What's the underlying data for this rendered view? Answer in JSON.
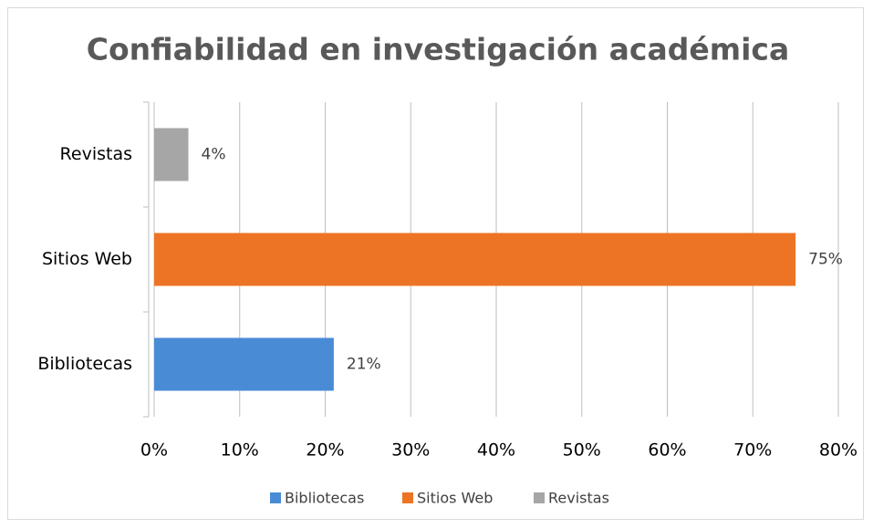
{
  "chart_data": {
    "type": "bar",
    "orientation": "horizontal",
    "title": "Confiabilidad en investigación académica",
    "categories": [
      "Bibliotecas",
      "Sitios Web",
      "Revistas"
    ],
    "values": [
      21,
      75,
      4
    ],
    "value_labels": [
      "21%",
      "75%",
      "4%"
    ],
    "colors": [
      "#4a8bd6",
      "#ed7424",
      "#a6a6a6"
    ],
    "xlim": [
      0,
      80
    ],
    "xticks": [
      {
        "value": 0,
        "label": "0%"
      },
      {
        "value": 10,
        "label": "10%"
      },
      {
        "value": 20,
        "label": "20%"
      },
      {
        "value": 30,
        "label": "30%"
      },
      {
        "value": 40,
        "label": "40%"
      },
      {
        "value": 50,
        "label": "50%"
      },
      {
        "value": 60,
        "label": "60%"
      },
      {
        "value": 70,
        "label": "70%"
      },
      {
        "value": 80,
        "label": "80%"
      }
    ],
    "grid": true,
    "legend": "bottom"
  }
}
